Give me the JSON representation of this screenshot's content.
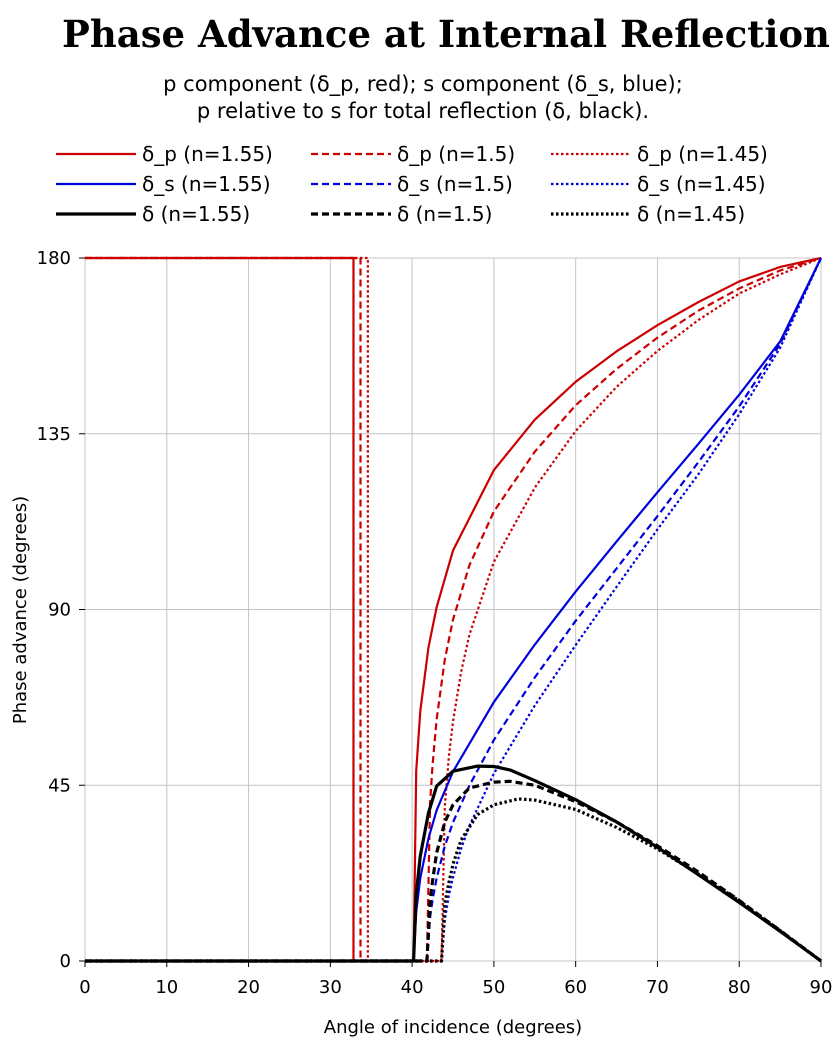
{
  "chart_data": {
    "type": "line",
    "title": "Phase Advance at Internal Reflection",
    "subtitle_lines": [
      "p component (δ_p, red); s component (δ_s, blue);",
      "p relative to s for total reflection (δ, black)."
    ],
    "xlabel": "Angle of incidence (degrees)",
    "ylabel": "Phase advance (degrees)",
    "xlim": [
      0,
      90
    ],
    "ylim": [
      0,
      180
    ],
    "xticks": [
      0,
      10,
      20,
      30,
      40,
      50,
      60,
      70,
      80,
      90
    ],
    "yticks": [
      0,
      45,
      90,
      135,
      180
    ],
    "grid": true,
    "legend_position": "top",
    "colors": {
      "red": "#cc0000",
      "blue": "#0000dd",
      "black": "#000000"
    },
    "series": [
      {
        "name": "δ_p (n=1.55)",
        "color": "#cc0000",
        "style": "solid",
        "x": [
          0,
          32.83,
          32.83,
          40.18,
          40.5,
          41,
          42,
          43,
          45,
          50,
          55,
          60,
          65,
          70,
          75,
          80,
          85,
          90
        ],
        "y": [
          180,
          180,
          0,
          0,
          48.6,
          64.0,
          80.3,
          90.6,
          105.1,
          125.7,
          138.6,
          148.3,
          156.1,
          162.8,
          168.7,
          174.0,
          177.7,
          180
        ]
      },
      {
        "name": "δ_p (n=1.5)",
        "color": "#cc0000",
        "style": "dashed",
        "x": [
          0,
          33.69,
          33.69,
          41.81,
          42.2,
          42.5,
          43,
          44,
          45,
          47,
          50,
          55,
          60,
          65,
          70,
          75,
          80,
          85,
          90
        ],
        "y": [
          180,
          180,
          0,
          0,
          40.5,
          50.2,
          61.9,
          77.2,
          87.4,
          101.3,
          115.1,
          130.4,
          142.3,
          151.6,
          159.6,
          166.5,
          172.2,
          176.8,
          180
        ]
      },
      {
        "name": "δ_p (n=1.45)",
        "color": "#cc0000",
        "style": "dotted",
        "x": [
          0,
          34.59,
          34.59,
          43.6,
          44,
          44.5,
          45,
          46,
          47,
          50,
          55,
          60,
          65,
          70,
          75,
          80,
          85,
          90
        ],
        "y": [
          180,
          180,
          0,
          0,
          39.6,
          52.4,
          61.3,
          74.1,
          83.5,
          102.2,
          121.2,
          135.7,
          147.0,
          156.2,
          164.1,
          170.9,
          175.8,
          180
        ]
      },
      {
        "name": "δ_s (n=1.55)",
        "color": "#0000dd",
        "style": "solid",
        "x": [
          0,
          40.18,
          40.5,
          41,
          42,
          43,
          45,
          50,
          55,
          60,
          65,
          70,
          75,
          80,
          85,
          90
        ],
        "y": [
          0,
          0,
          12.6,
          21.3,
          31.4,
          38.6,
          48.5,
          66.3,
          81.0,
          94.6,
          107.4,
          120.0,
          132.4,
          145.0,
          158.6,
          180
        ]
      },
      {
        "name": "δ_s (n=1.5)",
        "color": "#0000dd",
        "style": "dashed",
        "x": [
          0,
          41.81,
          42.2,
          42.5,
          43,
          44,
          45,
          47,
          50,
          55,
          60,
          65,
          70,
          75,
          80,
          85,
          90
        ],
        "y": [
          0,
          0,
          11.2,
          15.7,
          21.2,
          29.4,
          35.5,
          44.9,
          56.6,
          72.6,
          87.1,
          100.5,
          113.9,
          127.7,
          142.0,
          158.0,
          180
        ]
      },
      {
        "name": "δ_s (n=1.45)",
        "color": "#0000dd",
        "style": "dotted",
        "x": [
          0,
          43.6,
          44,
          44.5,
          45,
          46,
          47,
          50,
          55,
          60,
          65,
          70,
          75,
          80,
          85,
          90
        ],
        "y": [
          0,
          0,
          10.5,
          16.9,
          21.4,
          28.8,
          34.6,
          48.0,
          65.4,
          80.9,
          95.8,
          110.5,
          124.6,
          140.0,
          157.0,
          180
        ]
      },
      {
        "name": "δ (n=1.55)",
        "color": "#000000",
        "style": "solid",
        "x": [
          0,
          40.18,
          40.5,
          41,
          42,
          43,
          45,
          48,
          50,
          52,
          55,
          60,
          65,
          70,
          75,
          80,
          85,
          90
        ],
        "y": [
          0,
          0,
          17.1,
          26.9,
          37.9,
          44.8,
          48.6,
          49.9,
          49.8,
          48.9,
          46.2,
          41.3,
          35.6,
          29.1,
          22.1,
          15.0,
          7.6,
          0
        ]
      },
      {
        "name": "δ (n=1.5)",
        "color": "#000000",
        "style": "dashed",
        "x": [
          0,
          41.81,
          42.2,
          42.5,
          43,
          44,
          45,
          47,
          50,
          52,
          55,
          60,
          65,
          70,
          75,
          80,
          85,
          90
        ],
        "y": [
          0,
          0,
          15.2,
          20.5,
          27.7,
          35.6,
          40.0,
          44.3,
          45.8,
          46.0,
          45.0,
          40.8,
          35.6,
          29.5,
          22.8,
          15.5,
          7.8,
          0
        ]
      },
      {
        "name": "δ (n=1.45)",
        "color": "#000000",
        "style": "dotted",
        "x": [
          0,
          43.6,
          44,
          44.5,
          45,
          46,
          48,
          50,
          53,
          55,
          60,
          65,
          70,
          75,
          80,
          85,
          90
        ],
        "y": [
          0,
          0,
          14.8,
          20.1,
          24.8,
          31.0,
          37.5,
          40.0,
          41.5,
          41.2,
          38.8,
          34.2,
          28.7,
          22.3,
          15.4,
          7.8,
          0
        ]
      }
    ]
  }
}
